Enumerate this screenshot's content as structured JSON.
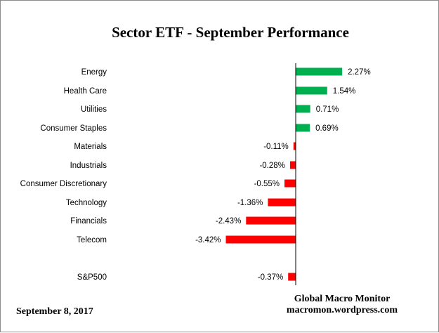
{
  "chart_data": {
    "type": "bar",
    "orientation": "horizontal",
    "title": "Sector ETF - September Performance",
    "categories": [
      "Energy",
      "Health Care",
      "Utilities",
      "Consumer Staples",
      "Materials",
      "Industrials",
      "Consumer Discretionary",
      "Technology",
      "Financials",
      "Telecom",
      "S&P500"
    ],
    "values": [
      2.27,
      1.54,
      0.71,
      0.69,
      -0.11,
      -0.28,
      -0.55,
      -1.36,
      -2.43,
      -3.42,
      -0.37
    ],
    "value_labels": [
      "2.27%",
      "1.54%",
      "0.71%",
      "0.69%",
      "-0.11%",
      "-0.28%",
      "-0.55%",
      "-1.36%",
      "-2.43%",
      "-3.42%",
      "-0.37%"
    ],
    "xlim": [
      -3.42,
      2.27
    ],
    "grid": false,
    "legend": "none",
    "colors": {
      "positive": "#00b050",
      "negative": "#ff0000"
    }
  },
  "footer": {
    "date": "September 8,  2017",
    "source_name": "Global Macro Monitor",
    "source_url": "macromon.wordpress.com"
  }
}
